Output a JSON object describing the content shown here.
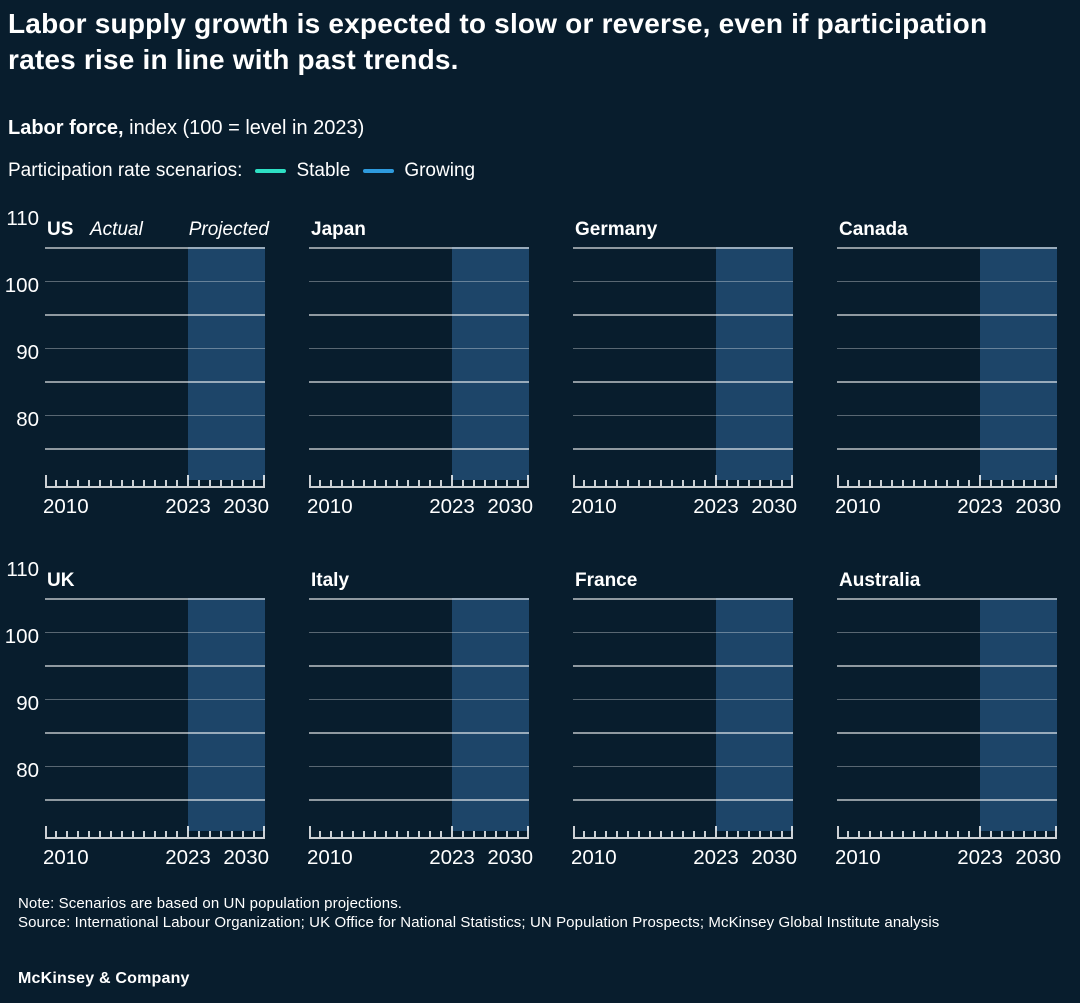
{
  "header": {
    "title": "Labor supply growth is expected to slow or reverse, even if participation rates rise in line with past trends.",
    "subtitle_bold": "Labor force,",
    "subtitle_rest": " index (100 = level in 2023)"
  },
  "legend": {
    "label": "Participation rate scenarios:",
    "items": [
      {
        "name": "Stable",
        "color": "#2EE0C4"
      },
      {
        "name": "Growing",
        "color": "#2E9BDE"
      }
    ]
  },
  "footer": {
    "note": "Note: Scenarios are based on UN population projections.",
    "source": "Source: International Labour Organization; UK Office for National Statistics; UN Population Prospects; McKinsey Global Institute analysis",
    "brand": "McKinsey & Company"
  },
  "chart_data": {
    "type": "line",
    "title": "Labor force, index (100 = level in 2023)",
    "panels": [
      "US",
      "Japan",
      "Germany",
      "Canada",
      "UK",
      "Italy",
      "France",
      "Australia"
    ],
    "x": {
      "range": [
        2010,
        2030
      ],
      "tick_every_years": 1,
      "labeled_ticks": [
        2010,
        2023,
        2030
      ],
      "labels": [
        "2010",
        "2023",
        "2030"
      ]
    },
    "y": {
      "displayed_range": [
        80,
        110
      ],
      "major_gridlines": [
        110,
        100,
        90,
        80
      ],
      "minor_gridlines": [
        105,
        95,
        85
      ],
      "tick_labels": [
        "110",
        "100",
        "90",
        "80"
      ]
    },
    "projection_band": {
      "start": 2023,
      "end": 2030,
      "shade_color": "#1D4569"
    },
    "annotations": {
      "panel": "US",
      "actual_label": "Actual",
      "projected_label": "Projected"
    },
    "series": [
      {
        "name": "Stable",
        "color": "#2EE0C4",
        "values_visible": false
      },
      {
        "name": "Growing",
        "color": "#2E9BDE",
        "values_visible": false
      }
    ],
    "note": "No data lines are rendered in the screenshot; each panel shows only gridlines, axes and the 2023-2030 projection shading",
    "legend_position": "top-left",
    "grid": true
  }
}
